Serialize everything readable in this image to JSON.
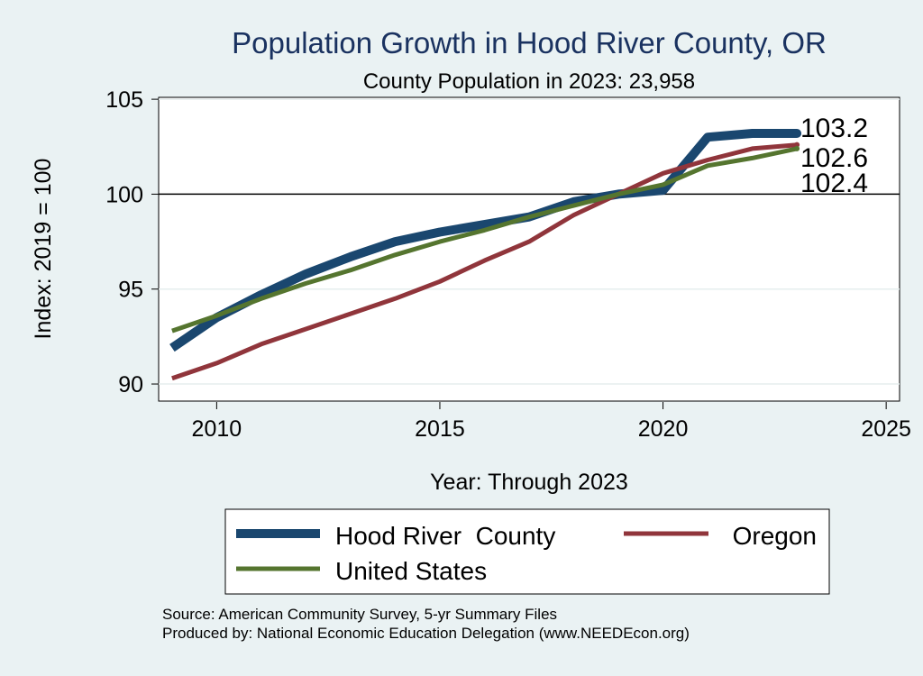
{
  "chart_data": {
    "type": "line",
    "title": "Population Growth in Hood River County, OR",
    "subtitle": "County Population in 2023: 23,958",
    "xlabel": "Year: Through 2023",
    "ylabel": "Index: 2019 = 100",
    "xlim": [
      2008.7,
      2025.3
    ],
    "ylim": [
      89.1,
      105.1
    ],
    "xticks": [
      2010,
      2015,
      2020,
      2025
    ],
    "yticks": [
      90,
      95,
      100,
      105
    ],
    "reference_line": 100,
    "grid": true,
    "legend_position": "bottom",
    "series": [
      {
        "name": "Hood River  County",
        "color": "#1a476f",
        "x": [
          2009,
          2010,
          2011,
          2012,
          2013,
          2014,
          2015,
          2016,
          2017,
          2018,
          2019,
          2020,
          2021,
          2022,
          2023
        ],
        "values": [
          91.9,
          93.5,
          94.7,
          95.8,
          96.7,
          97.5,
          98.0,
          98.4,
          98.8,
          99.6,
          100.0,
          100.2,
          103.0,
          103.2,
          103.2
        ],
        "end_label": "103.2"
      },
      {
        "name": "Oregon",
        "color": "#90353b",
        "x": [
          2009,
          2010,
          2011,
          2012,
          2013,
          2014,
          2015,
          2016,
          2017,
          2018,
          2019,
          2020,
          2021,
          2022,
          2023
        ],
        "values": [
          90.3,
          91.1,
          92.1,
          92.9,
          93.7,
          94.5,
          95.4,
          96.5,
          97.5,
          98.9,
          100.0,
          101.1,
          101.8,
          102.4,
          102.6
        ],
        "end_label": "102.6"
      },
      {
        "name": "United States",
        "color": "#55752f",
        "x": [
          2009,
          2010,
          2011,
          2012,
          2013,
          2014,
          2015,
          2016,
          2017,
          2018,
          2019,
          2020,
          2021,
          2022,
          2023
        ],
        "values": [
          92.8,
          93.6,
          94.5,
          95.3,
          96.0,
          96.8,
          97.5,
          98.1,
          98.8,
          99.4,
          100.0,
          100.5,
          101.5,
          101.9,
          102.4
        ],
        "end_label": "102.4"
      }
    ]
  },
  "footer": {
    "source": "Source: American Community Survey, 5-yr Summary Files",
    "produced_by": "Produced by: National Economic Education Delegation (www.NEEDEcon.org)"
  }
}
